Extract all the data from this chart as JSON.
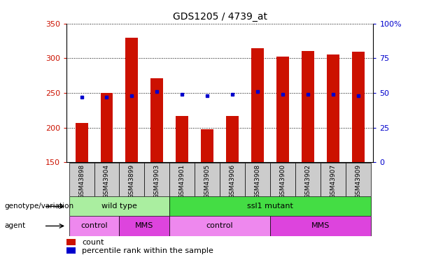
{
  "title": "GDS1205 / 4739_at",
  "samples": [
    "GSM43898",
    "GSM43904",
    "GSM43899",
    "GSM43903",
    "GSM43901",
    "GSM43905",
    "GSM43906",
    "GSM43908",
    "GSM43900",
    "GSM43902",
    "GSM43907",
    "GSM43909"
  ],
  "counts": [
    207,
    250,
    330,
    271,
    217,
    198,
    217,
    315,
    302,
    310,
    305,
    309
  ],
  "percentile_ranks": [
    47,
    47,
    48,
    51,
    49,
    48,
    49,
    51,
    49,
    49,
    49,
    48
  ],
  "y_min": 150,
  "y_max": 350,
  "y_ticks": [
    150,
    200,
    250,
    300,
    350
  ],
  "y2_ticks": [
    0,
    25,
    50,
    75,
    100
  ],
  "bar_color": "#cc1100",
  "dot_color": "#0000cc",
  "bar_width": 0.5,
  "genotype_groups": [
    {
      "label": "wild type",
      "start": 0,
      "end": 3,
      "color": "#aaeea0"
    },
    {
      "label": "ssl1 mutant",
      "start": 4,
      "end": 11,
      "color": "#44dd44"
    }
  ],
  "agent_groups": [
    {
      "label": "control",
      "start": 0,
      "end": 1,
      "color": "#ee88ee"
    },
    {
      "label": "MMS",
      "start": 2,
      "end": 3,
      "color": "#dd44dd"
    },
    {
      "label": "control",
      "start": 4,
      "end": 7,
      "color": "#ee88ee"
    },
    {
      "label": "MMS",
      "start": 8,
      "end": 11,
      "color": "#dd44dd"
    }
  ],
  "legend_count_label": "count",
  "legend_pct_label": "percentile rank within the sample",
  "row1_label": "genotype/variation",
  "row2_label": "agent",
  "tick_label_color_left": "#cc1100",
  "tick_label_color_right": "#0000cc",
  "xtick_bg_color": "#cccccc"
}
